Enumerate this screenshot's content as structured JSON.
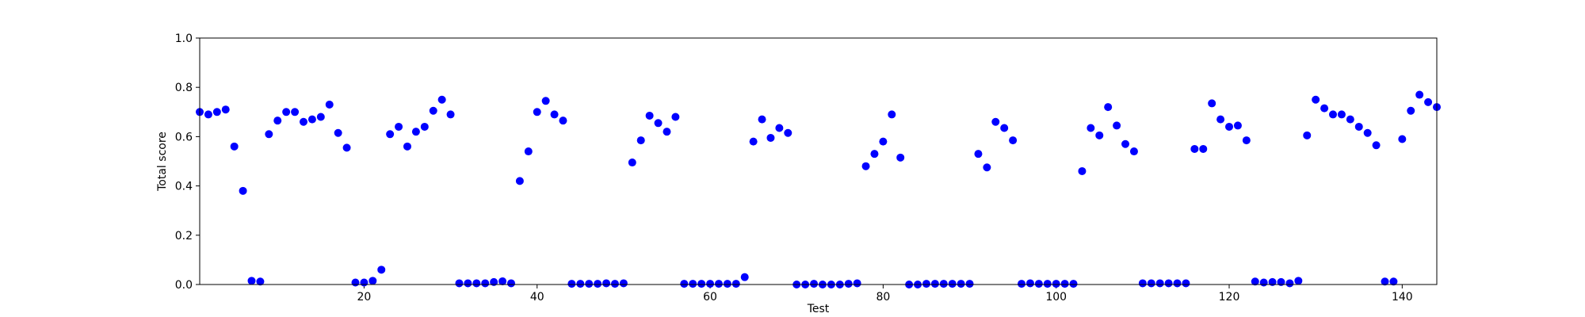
{
  "chart_data": {
    "type": "scatter",
    "title": "",
    "xlabel": "Test",
    "ylabel": "Total score",
    "xlim": [
      1,
      144
    ],
    "ylim": [
      0,
      1.0
    ],
    "x_ticks": [
      20,
      40,
      60,
      80,
      100,
      120,
      140
    ],
    "y_ticks": [
      0.0,
      0.2,
      0.4,
      0.6,
      0.8,
      1.0
    ],
    "x_tick_labels": [
      "20",
      "40",
      "60",
      "80",
      "100",
      "120",
      "140"
    ],
    "y_tick_labels": [
      "0.0",
      "0.2",
      "0.4",
      "0.6",
      "0.8",
      "1.0"
    ],
    "grid": false,
    "marker_color": "#0000ff",
    "x": [
      1,
      2,
      3,
      4,
      5,
      6,
      7,
      8,
      9,
      10,
      11,
      12,
      13,
      14,
      15,
      16,
      17,
      18,
      19,
      20,
      21,
      22,
      23,
      24,
      25,
      26,
      27,
      28,
      29,
      30,
      31,
      32,
      33,
      34,
      35,
      36,
      37,
      38,
      39,
      40,
      41,
      42,
      43,
      44,
      45,
      46,
      47,
      48,
      49,
      50,
      51,
      52,
      53,
      54,
      55,
      56,
      57,
      58,
      59,
      60,
      61,
      62,
      63,
      64,
      65,
      66,
      67,
      68,
      69,
      70,
      71,
      72,
      73,
      74,
      75,
      76,
      77,
      78,
      79,
      80,
      81,
      82,
      83,
      84,
      85,
      86,
      87,
      88,
      89,
      90,
      91,
      92,
      93,
      94,
      95,
      96,
      97,
      98,
      99,
      100,
      101,
      102,
      103,
      104,
      105,
      106,
      107,
      108,
      109,
      110,
      111,
      112,
      113,
      114,
      115,
      116,
      117,
      118,
      119,
      120,
      121,
      122,
      123,
      124,
      125,
      126,
      127,
      128,
      129,
      130,
      131,
      132,
      133,
      134,
      135,
      136,
      137,
      138,
      139,
      140,
      141,
      142,
      143,
      144
    ],
    "y": [
      0.7,
      0.69,
      0.7,
      0.71,
      0.56,
      0.38,
      0.015,
      0.012,
      0.61,
      0.665,
      0.7,
      0.7,
      0.66,
      0.67,
      0.68,
      0.73,
      0.615,
      0.555,
      0.008,
      0.008,
      0.015,
      0.06,
      0.61,
      0.64,
      0.56,
      0.62,
      0.64,
      0.705,
      0.75,
      0.69,
      0.005,
      0.005,
      0.005,
      0.005,
      0.01,
      0.013,
      0.005,
      0.42,
      0.54,
      0.7,
      0.745,
      0.69,
      0.665,
      0.003,
      0.003,
      0.003,
      0.003,
      0.005,
      0.003,
      0.005,
      0.495,
      0.585,
      0.685,
      0.655,
      0.62,
      0.68,
      0.003,
      0.003,
      0.003,
      0.003,
      0.003,
      0.003,
      0.003,
      0.03,
      0.58,
      0.67,
      0.595,
      0.635,
      0.615,
      0.0,
      0.0,
      0.003,
      0.0,
      0.0,
      0.0,
      0.003,
      0.005,
      0.48,
      0.53,
      0.58,
      0.69,
      0.515,
      0.0,
      0.0,
      0.003,
      0.003,
      0.003,
      0.003,
      0.003,
      0.003,
      0.53,
      0.475,
      0.66,
      0.635,
      0.585,
      0.003,
      0.005,
      0.003,
      0.003,
      0.003,
      0.003,
      0.003,
      0.46,
      0.635,
      0.605,
      0.72,
      0.645,
      0.57,
      0.54,
      0.005,
      0.005,
      0.005,
      0.005,
      0.005,
      0.005,
      0.55,
      0.55,
      0.735,
      0.67,
      0.64,
      0.645,
      0.585,
      0.012,
      0.008,
      0.01,
      0.01,
      0.005,
      0.015,
      0.605,
      0.75,
      0.715,
      0.69,
      0.69,
      0.67,
      0.64,
      0.615,
      0.565,
      0.012,
      0.012,
      0.59,
      0.705,
      0.77,
      0.74,
      0.72
    ]
  }
}
